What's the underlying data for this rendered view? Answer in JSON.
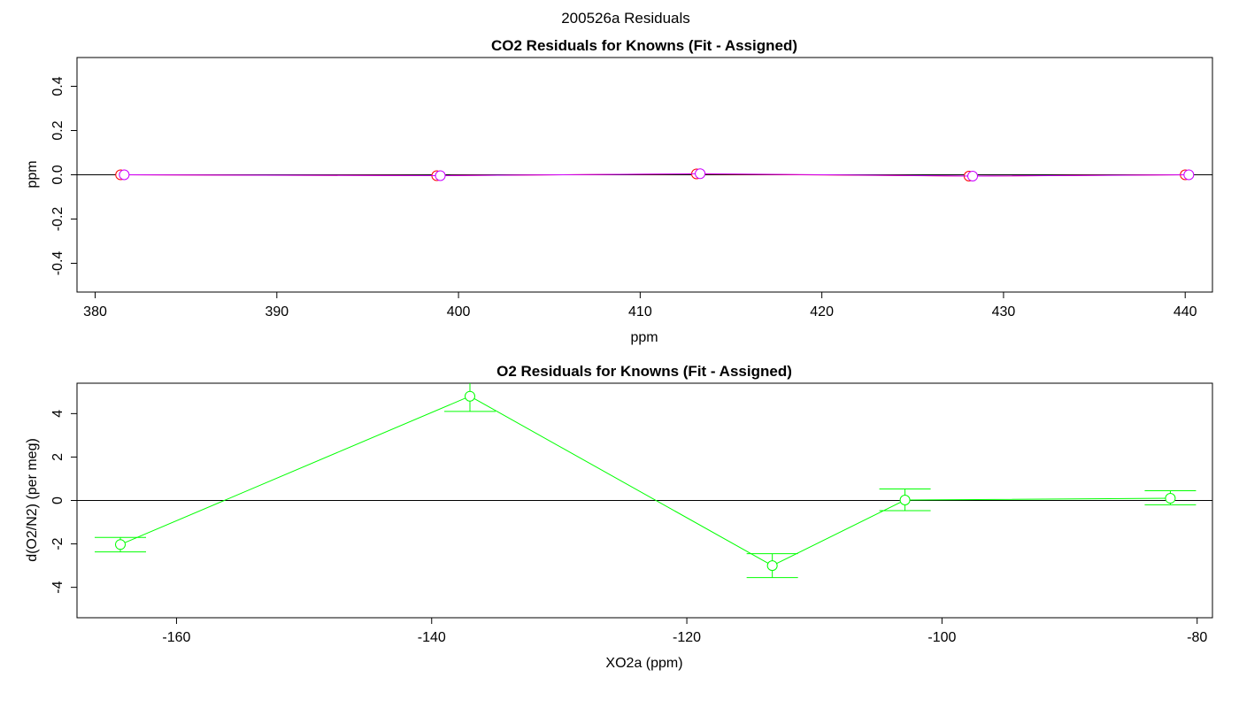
{
  "figure_title": "200526a  Residuals",
  "chart_data": [
    {
      "type": "scatter",
      "title": "CO2 Residuals for Knowns (Fit - Assigned)",
      "xlabel": "ppm",
      "ylabel": "ppm",
      "xlim": [
        379,
        441.5
      ],
      "ylim": [
        -0.53,
        0.53
      ],
      "xticks": [
        "380",
        "390",
        "400",
        "410",
        "420",
        "430",
        "440"
      ],
      "yticks": [
        "-0.4",
        "-0.2",
        "0.0",
        "0.2",
        "0.4"
      ],
      "zero_line": true,
      "series": [
        {
          "color": "#ff0000",
          "x": [
            381.4,
            398.8,
            413.1,
            428.1,
            440.0
          ],
          "y": [
            0.0,
            -0.004,
            0.004,
            -0.006,
            0.0
          ]
        },
        {
          "color": "#cc00ff",
          "x": [
            381.6,
            399.0,
            413.3,
            428.3,
            440.2
          ],
          "y": [
            0.0,
            -0.004,
            0.005,
            -0.006,
            0.0
          ]
        }
      ]
    },
    {
      "type": "line",
      "title": "O2 Residuals for Knowns (Fit - Assigned)",
      "xlabel": "XO2a (ppm)",
      "ylabel": "d(O2/N2) (per meg)",
      "xlim": [
        -167.8,
        -78.8
      ],
      "ylim": [
        -5.4,
        5.4
      ],
      "xticks": [
        "-160",
        "-140",
        "-120",
        "-100",
        "-80"
      ],
      "yticks": [
        "-4",
        "-2",
        "0",
        "2",
        "4"
      ],
      "zero_line": true,
      "series": [
        {
          "color": "#00ff00",
          "x": [
            -164.4,
            -137.0,
            -113.3,
            -102.9,
            -82.1
          ],
          "y": [
            -2.03,
            4.8,
            -3.0,
            0.02,
            0.1
          ],
          "err_low": [
            -2.37,
            4.1,
            -3.55,
            -0.47,
            -0.2
          ],
          "err_high": [
            -1.7,
            5.45,
            -2.45,
            0.53,
            0.45
          ]
        }
      ]
    }
  ]
}
